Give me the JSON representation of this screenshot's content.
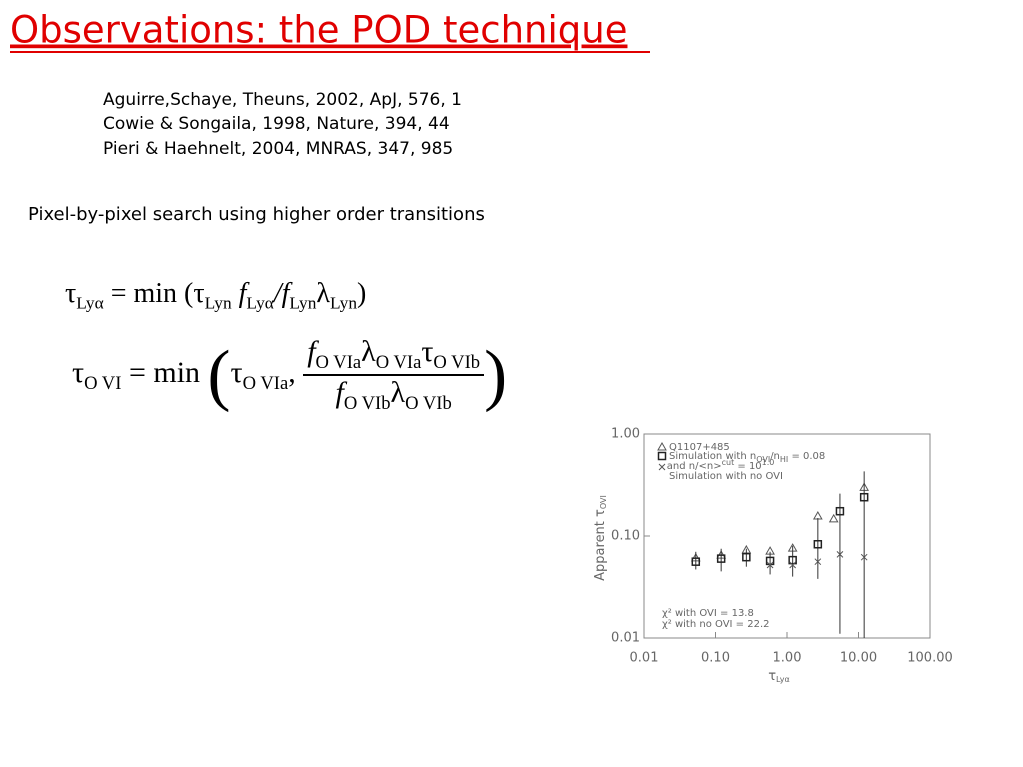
{
  "title": "Observations: the POD technique",
  "references": [
    "Aguirre,Schaye, Theuns, 2002, ApJ, 576, 1",
    "Cowie & Songaila, 1998, Nature, 394, 44",
    "Pieri & Haehnelt, 2004, MNRAS, 347, 985"
  ],
  "text": "Pixel-by-pixel search using higher order transitions",
  "formula_1": [
    "τ",
    "Lyα",
    "= min (τ",
    "Lyn",
    "f",
    "Lyα",
    "/f",
    "Lyn",
    "λ",
    "Lyn",
    ")"
  ],
  "formula_2": [
    "τ",
    "O VI",
    "= min",
    "(",
    "τ",
    "O VIa",
    ",",
    "f",
    "O VIa",
    "λ",
    "O VIa",
    "τ",
    "O VIb",
    "f",
    "O VIb",
    "λ",
    "O VIb",
    ")"
  ],
  "chart_data": {
    "type": "scatter",
    "xlabel": [
      "τ",
      "Lyα"
    ],
    "ylabel": [
      "Apparent τ",
      "OVI"
    ],
    "xscale": "log",
    "yscale": "log",
    "xlim": [
      0.01,
      100
    ],
    "ylim": [
      0.01,
      1
    ],
    "xticks": [
      {
        "value": 0.01,
        "label": "0.01"
      },
      {
        "value": 0.1,
        "label": "0.10"
      },
      {
        "value": 1,
        "label": "1.00"
      },
      {
        "value": 10,
        "label": "10.00"
      },
      {
        "value": 100,
        "label": "100.00"
      }
    ],
    "yticks": [
      {
        "value": 0.01,
        "label": "0.01"
      },
      {
        "value": 0.1,
        "label": "0.10"
      },
      {
        "value": 1,
        "label": "1.00"
      }
    ],
    "color": "#555555",
    "series": [
      {
        "name": [
          "Q1107+485"
        ],
        "marker": "triangle",
        "x": [
          0.053,
          0.12,
          0.27,
          0.58,
          1.2,
          2.7,
          4.5,
          12
        ],
        "values": [
          0.061,
          0.065,
          0.073,
          0.071,
          0.076,
          0.157,
          0.147,
          0.3
        ]
      },
      {
        "name": [
          "Simulation with n",
          "OVI",
          "/n",
          "HI",
          " = 0.08"
        ],
        "marker": "square",
        "x": [
          0.053,
          0.12,
          0.27,
          0.58,
          1.2,
          2.7,
          5.5,
          12
        ],
        "values": [
          0.056,
          0.06,
          0.062,
          0.057,
          0.058,
          0.083,
          0.175,
          0.24
        ],
        "lower": [
          0.047,
          0.045,
          0.05,
          0.042,
          0.04,
          0.038,
          0.011,
          0.01
        ],
        "upper": [
          0.07,
          0.075,
          0.075,
          0.07,
          0.08,
          0.15,
          0.26,
          0.43
        ]
      },
      {
        "name": [
          "Simulation with no OVI"
        ],
        "marker": "cross",
        "x": [
          0.58,
          1.2,
          2.7,
          5.5,
          12
        ],
        "values": [
          0.052,
          0.052,
          0.056,
          0.066,
          0.062
        ]
      }
    ],
    "legend_note": [
      "- and n/<n>",
      "cut",
      " = 10",
      "1.0"
    ],
    "annotations": [
      "χ² with OVI   = 13.8",
      "χ² with no OVI  = 22.2"
    ]
  }
}
